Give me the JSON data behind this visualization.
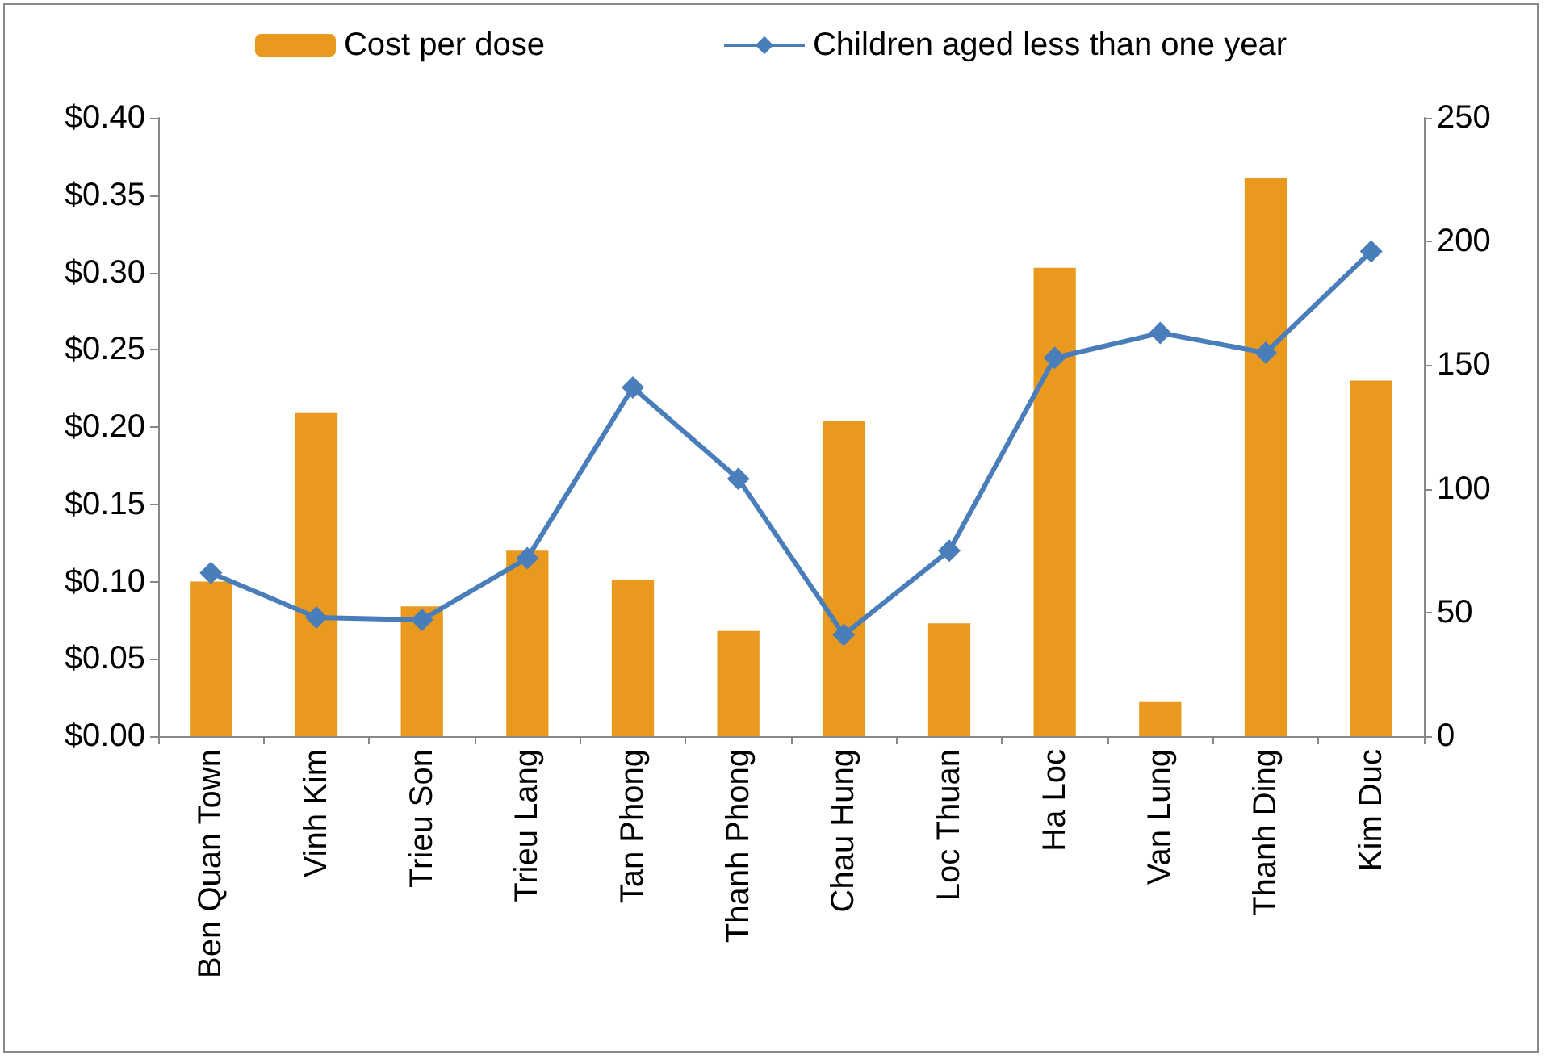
{
  "chart_data": {
    "type": "bar",
    "categories": [
      "Ben Quan Town",
      "Vinh Kim",
      "Trieu Son",
      "Trieu Lang",
      "Tan Phong",
      "Thanh Phong",
      "Chau Hung",
      "Loc Thuan",
      "Ha Loc",
      "Van Lung",
      "Thanh Ding",
      "Kim Duc"
    ],
    "series": [
      {
        "name": "Cost per dose",
        "color": "#e8991e",
        "values": [
          0.1,
          0.209,
          0.084,
          0.12,
          0.101,
          0.068,
          0.204,
          0.073,
          0.303,
          0.022,
          0.361,
          0.23
        ]
      },
      {
        "name": "Children aged less than one year",
        "type": "line",
        "axis": "y2",
        "color": "#4a7ebb",
        "marker": "diamond",
        "values": [
          66,
          48,
          47,
          72,
          141,
          104,
          41,
          75,
          153,
          163,
          155,
          196
        ]
      }
    ],
    "ylim": [
      0,
      0.4
    ],
    "yticks": [
      {
        "value": 0,
        "label": "$0.00"
      },
      {
        "value": 0.05,
        "label": "$0.05"
      },
      {
        "value": 0.1,
        "label": "$0.10"
      },
      {
        "value": 0.15,
        "label": "$0.15"
      },
      {
        "value": 0.2,
        "label": "$0.20"
      },
      {
        "value": 0.25,
        "label": "$0.25"
      },
      {
        "value": 0.3,
        "label": "$0.30"
      },
      {
        "value": 0.35,
        "label": "$0.35"
      },
      {
        "value": 0.4,
        "label": "$0.40"
      }
    ],
    "y2lim": [
      0,
      250
    ],
    "y2ticks": [
      0,
      50,
      100,
      150,
      200,
      250
    ],
    "legend": "top",
    "grid": false
  }
}
